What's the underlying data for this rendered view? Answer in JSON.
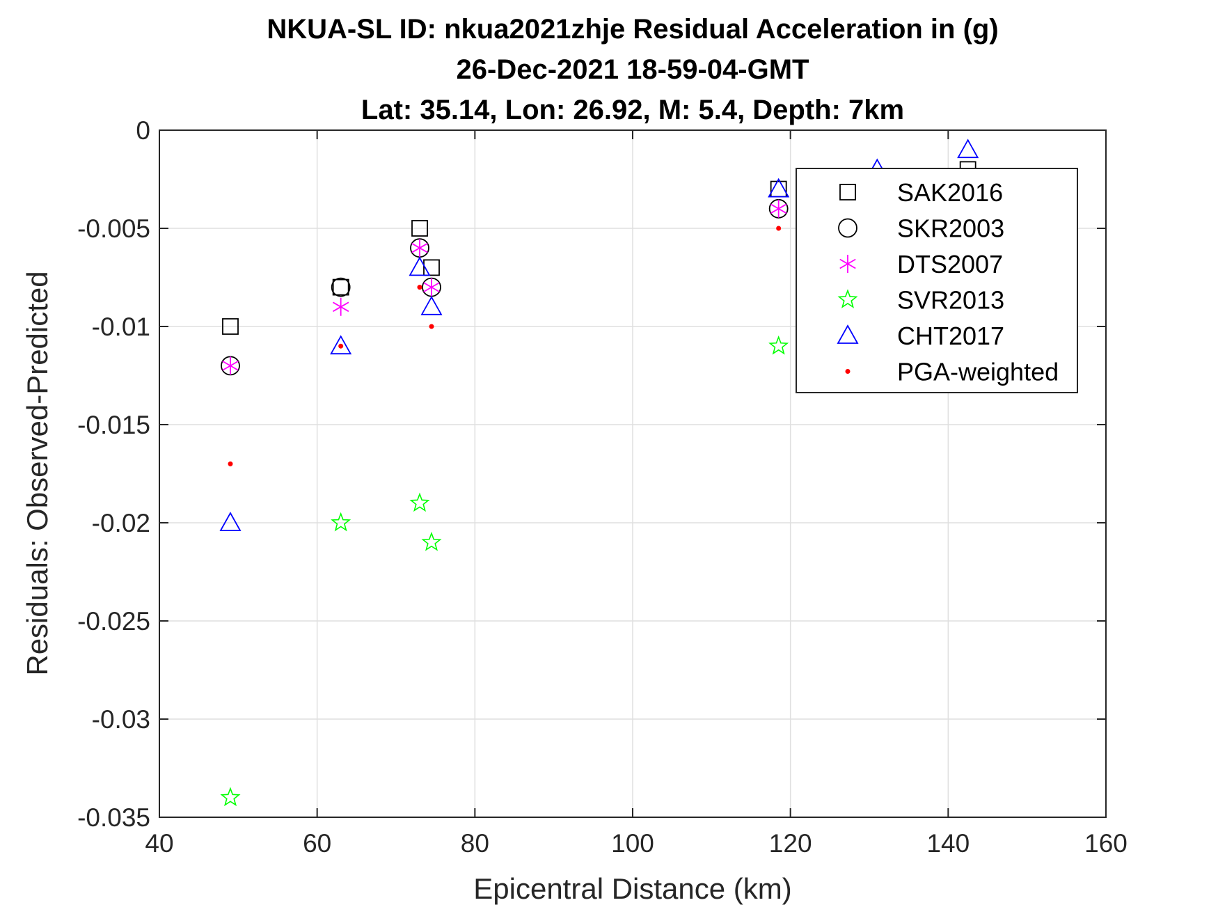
{
  "chart_data": {
    "type": "scatter",
    "title_lines": [
      "NKUA-SL ID: nkua2021zhje Residual Acceleration in (g)",
      "26-Dec-2021 18-59-04-GMT",
      "Lat: 35.14, Lon: 26.92, M: 5.4, Depth: 7km"
    ],
    "xlabel": "Epicentral Distance (km)",
    "ylabel": "Residuals: Observed-Predicted",
    "xlim": [
      40,
      160
    ],
    "ylim": [
      -0.035,
      0
    ],
    "xticks": [
      40,
      60,
      80,
      100,
      120,
      140,
      160
    ],
    "xtick_labels": [
      "40",
      "60",
      "80",
      "100",
      "120",
      "140",
      "160"
    ],
    "yticks": [
      0,
      -0.005,
      -0.01,
      -0.015,
      -0.02,
      -0.025,
      -0.03,
      -0.035
    ],
    "ytick_labels": [
      "0",
      "-0.005",
      "-0.01",
      "-0.015",
      "-0.02",
      "-0.025",
      "-0.03",
      "-0.035"
    ],
    "grid": true,
    "legend_position": "top-right",
    "series": [
      {
        "name": "SAK2016",
        "marker": "square",
        "color": "#000000",
        "points": [
          [
            49,
            -0.01
          ],
          [
            63,
            -0.008
          ],
          [
            73,
            -0.005
          ],
          [
            74.5,
            -0.007
          ],
          [
            118.5,
            -0.003
          ],
          [
            142.5,
            -0.002
          ]
        ]
      },
      {
        "name": "SKR2003",
        "marker": "circle",
        "color": "#000000",
        "points": [
          [
            49,
            -0.012
          ],
          [
            63,
            -0.008
          ],
          [
            73,
            -0.006
          ],
          [
            74.5,
            -0.008
          ],
          [
            118.5,
            -0.004
          ]
        ]
      },
      {
        "name": "DTS2007",
        "marker": "asterisk",
        "color": "#ff00ff",
        "points": [
          [
            49,
            -0.012
          ],
          [
            63,
            -0.009
          ],
          [
            73,
            -0.006
          ],
          [
            74.5,
            -0.008
          ],
          [
            118.5,
            -0.004
          ]
        ]
      },
      {
        "name": "SVR2013",
        "marker": "star",
        "color": "#00ff00",
        "points": [
          [
            49,
            -0.034
          ],
          [
            63,
            -0.02
          ],
          [
            73,
            -0.019
          ],
          [
            74.5,
            -0.021
          ],
          [
            118.5,
            -0.011
          ]
        ]
      },
      {
        "name": "CHT2017",
        "marker": "triangle",
        "color": "#0000ff",
        "points": [
          [
            49,
            -0.02
          ],
          [
            63,
            -0.011
          ],
          [
            73,
            -0.007
          ],
          [
            74.5,
            -0.009
          ],
          [
            118.5,
            -0.003
          ],
          [
            131,
            -0.002
          ],
          [
            142.5,
            -0.001
          ]
        ]
      },
      {
        "name": "PGA-weighted",
        "marker": "dot",
        "color": "#ff0000",
        "points": [
          [
            49,
            -0.017
          ],
          [
            63,
            -0.011
          ],
          [
            73,
            -0.008
          ],
          [
            74.5,
            -0.01
          ],
          [
            118.5,
            -0.005
          ]
        ]
      }
    ]
  }
}
